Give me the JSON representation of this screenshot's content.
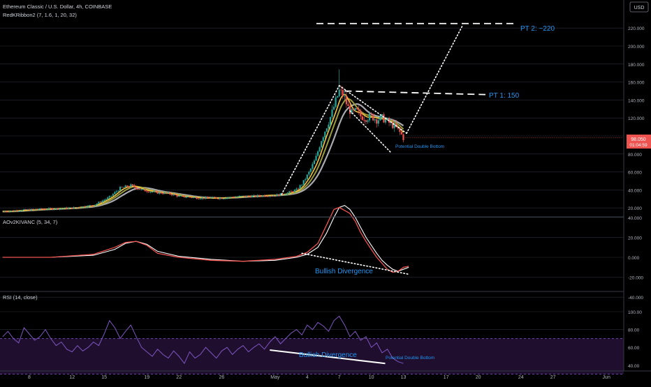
{
  "header": {
    "symbol_line": "Ethereum Classic / U.S. Dollar, 4h, COINBASE",
    "indicator1": "RedKRibbon2 (7, 1.6, 1, 20, 32)",
    "currency": "USD"
  },
  "price_tag": {
    "price": "98.050",
    "countdown": "01:04:59"
  },
  "colors": {
    "background": "#000000",
    "grid": "#2a2e39",
    "up": "#26a69a",
    "down": "#ef5350",
    "annotation": "#2196f3",
    "rsi": "#7e57c2",
    "rsi_band": "#1f0e2e",
    "ribbon_fast": "#f5c542",
    "ribbon_mid": "#9c9c3c",
    "ribbon_slow": "#a9a9b0",
    "aov_fast": "#ef5350",
    "aov_slow": "#ffffff"
  },
  "x_axis": {
    "ticks": [
      {
        "label": "8",
        "day": 8
      },
      {
        "label": "12",
        "day": 12
      },
      {
        "label": "15",
        "day": 15
      },
      {
        "label": "19",
        "day": 19
      },
      {
        "label": "22",
        "day": 22
      },
      {
        "label": "26",
        "day": 26
      },
      {
        "label": "May",
        "day": 31
      },
      {
        "label": "4",
        "day": 34
      },
      {
        "label": "7",
        "day": 37
      },
      {
        "label": "10",
        "day": 40
      },
      {
        "label": "13",
        "day": 43
      },
      {
        "label": "17",
        "day": 47
      },
      {
        "label": "20",
        "day": 50
      },
      {
        "label": "24",
        "day": 54
      },
      {
        "label": "27",
        "day": 57
      },
      {
        "label": "Jun",
        "day": 62
      }
    ]
  },
  "chart_data": [
    {
      "type": "candlestick",
      "title": "Ethereum Classic / U.S. Dollar, 4h, COINBASE",
      "ylim": [
        0,
        240
      ],
      "grid": true,
      "y_ticks": [
        "20.000",
        "40.000",
        "60.000",
        "80.000",
        "100.000",
        "120.000",
        "140.000",
        "160.000",
        "180.000",
        "200.000",
        "220.000"
      ],
      "price_path": [
        [
          5.5,
          16
        ],
        [
          8,
          18
        ],
        [
          10,
          19
        ],
        [
          12,
          20
        ],
        [
          14,
          23
        ],
        [
          15.5,
          32
        ],
        [
          16.5,
          42
        ],
        [
          17.5,
          45
        ],
        [
          18.5,
          40
        ],
        [
          20,
          37
        ],
        [
          21,
          36
        ],
        [
          22,
          33
        ],
        [
          23,
          32
        ],
        [
          24,
          31
        ],
        [
          25,
          31
        ],
        [
          26,
          31
        ],
        [
          27,
          32
        ],
        [
          28,
          33
        ],
        [
          29,
          33
        ],
        [
          30,
          34
        ],
        [
          31,
          34
        ],
        [
          32,
          36
        ],
        [
          33,
          40
        ],
        [
          33.6,
          48
        ],
        [
          34.2,
          60
        ],
        [
          34.8,
          75
        ],
        [
          35.3,
          95
        ],
        [
          35.8,
          110
        ],
        [
          36.3,
          125
        ],
        [
          36.7,
          140
        ],
        [
          37,
          150
        ],
        [
          37.4,
          145
        ],
        [
          37.8,
          132
        ],
        [
          38.2,
          125
        ],
        [
          38.6,
          128
        ],
        [
          39,
          122
        ],
        [
          39.5,
          120
        ],
        [
          40,
          122
        ],
        [
          40.5,
          118
        ],
        [
          41,
          120
        ],
        [
          41.5,
          116
        ],
        [
          42,
          112
        ],
        [
          42.4,
          108
        ],
        [
          42.8,
          102
        ],
        [
          43,
          98
        ]
      ],
      "annotations": [
        "PT 2: ~220",
        "PT 1: 150",
        "Potential Double Bottom"
      ],
      "pt1_level": 150,
      "pt2_level": 225
    },
    {
      "type": "line",
      "title": "AOv2KIVANC (5, 34, 7)",
      "ylim": [
        -25,
        60
      ],
      "y_ticks": [
        "40.000",
        "20.000",
        "0.000",
        "-20.000",
        "-40.000"
      ],
      "x": [
        5.5,
        10,
        14,
        16,
        17,
        18,
        19,
        20,
        22,
        25,
        28,
        31,
        33,
        34,
        35,
        35.8,
        36.5,
        37,
        37.5,
        38,
        38.5,
        39,
        39.5,
        40,
        40.5,
        41,
        41.5,
        42,
        42.5,
        43,
        43.5
      ],
      "series": [
        {
          "values": [
            0,
            0,
            3,
            10,
            15,
            16,
            12,
            4,
            0,
            -3,
            -4,
            -2,
            1,
            5,
            14,
            32,
            48,
            50,
            47,
            44,
            36,
            25,
            16,
            8,
            0,
            -6,
            -12,
            -15,
            -14,
            -10,
            -9
          ]
        },
        {
          "values": [
            0,
            0,
            2,
            8,
            14,
            16,
            13,
            6,
            1,
            -2,
            -4,
            -3,
            0,
            3,
            10,
            24,
            40,
            50,
            52,
            48,
            40,
            30,
            20,
            12,
            4,
            -3,
            -8,
            -12,
            -14,
            -12,
            -10
          ]
        }
      ],
      "annotations": [
        "Bullish Divergence"
      ]
    },
    {
      "type": "line",
      "title": "RSI (14, close)",
      "ylim": [
        20,
        100
      ],
      "y_ticks": [
        "100.00",
        "80.00",
        "60.00",
        "40.00"
      ],
      "bands": [
        70,
        30
      ],
      "x": [
        5.5,
        6,
        6.5,
        7,
        7.5,
        8,
        8.5,
        9,
        9.5,
        10,
        10.5,
        11,
        11.5,
        12,
        12.5,
        13,
        13.5,
        14,
        14.5,
        15,
        15.5,
        16,
        16.5,
        17,
        17.5,
        18,
        18.5,
        19,
        19.5,
        20,
        20.5,
        21,
        21.5,
        22,
        22.5,
        23,
        23.5,
        24,
        24.5,
        25,
        25.5,
        26,
        26.5,
        27,
        27.5,
        28,
        28.5,
        29,
        29.5,
        30,
        30.5,
        31,
        31.5,
        32,
        32.5,
        33,
        33.5,
        34,
        34.5,
        35,
        35.5,
        36,
        36.5,
        37,
        37.5,
        38,
        38.5,
        39,
        39.5,
        40,
        40.5,
        41,
        41.5,
        42,
        42.5,
        43
      ],
      "values": [
        72,
        78,
        70,
        65,
        82,
        75,
        68,
        72,
        80,
        70,
        62,
        66,
        58,
        55,
        62,
        56,
        60,
        66,
        62,
        75,
        90,
        82,
        70,
        78,
        85,
        72,
        60,
        55,
        50,
        58,
        52,
        48,
        56,
        50,
        42,
        55,
        48,
        52,
        60,
        54,
        48,
        56,
        60,
        52,
        58,
        62,
        55,
        60,
        64,
        58,
        66,
        72,
        64,
        70,
        76,
        80,
        74,
        85,
        80,
        88,
        84,
        78,
        90,
        95,
        85,
        72,
        78,
        68,
        72,
        60,
        65,
        54,
        58,
        48,
        44,
        42
      ],
      "annotations": [
        "Bullish Divergence",
        "Potential Double Bottom"
      ]
    }
  ]
}
